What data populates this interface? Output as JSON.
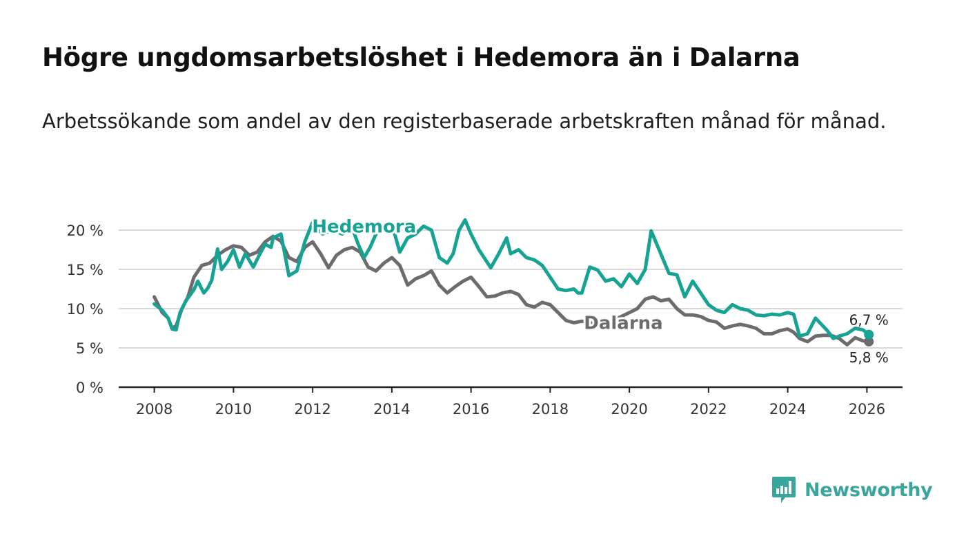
{
  "title": "Högre ungdomsarbetslöshet i Hedemora än i Dalarna",
  "subtitle": "Arbetssökande som andel av den registerbaserade arbetskraften månad för månad.",
  "brand": {
    "name": "Newsworthy",
    "color": "#3aa59b"
  },
  "chart_data": {
    "type": "line",
    "title": "Högre ungdomsarbetslöshet i Hedemora än i Dalarna",
    "xlabel": "",
    "ylabel": "",
    "xlim": [
      2007.1,
      2026.9
    ],
    "ylim": [
      0,
      20
    ],
    "x_ticks": [
      2008,
      2010,
      2012,
      2014,
      2016,
      2018,
      2020,
      2022,
      2024,
      2026
    ],
    "y_ticks": [
      0,
      5,
      10,
      15,
      20
    ],
    "y_tick_labels": [
      "0 %",
      "5 %",
      "10 %",
      "15 %",
      "20 %"
    ],
    "grid": true,
    "series": [
      {
        "name": "Hedemora",
        "label": "Hedemora",
        "color": "#16a394",
        "end_label": "6,7 %",
        "x": [
          2008.0,
          2008.2,
          2008.35,
          2008.45,
          2008.55,
          2008.65,
          2008.8,
          2009.0,
          2009.1,
          2009.25,
          2009.35,
          2009.45,
          2009.6,
          2009.7,
          2009.85,
          2010.0,
          2010.15,
          2010.3,
          2010.5,
          2010.65,
          2010.8,
          2010.95,
          2011.0,
          2011.2,
          2011.4,
          2011.6,
          2011.8,
          2012.0,
          2012.25,
          2012.5,
          2012.75,
          2013.0,
          2013.15,
          2013.3,
          2013.45,
          2013.6,
          2013.8,
          2014.0,
          2014.2,
          2014.4,
          2014.6,
          2014.8,
          2015.0,
          2015.2,
          2015.4,
          2015.55,
          2015.7,
          2015.85,
          2016.0,
          2016.2,
          2016.5,
          2016.7,
          2016.9,
          2017.0,
          2017.2,
          2017.4,
          2017.6,
          2017.8,
          2018.0,
          2018.2,
          2018.4,
          2018.6,
          2018.7,
          2018.8,
          2019.0,
          2019.2,
          2019.4,
          2019.6,
          2019.8,
          2020.0,
          2020.2,
          2020.4,
          2020.55,
          2020.75,
          2021.0,
          2021.2,
          2021.4,
          2021.6,
          2021.8,
          2022.0,
          2022.2,
          2022.4,
          2022.6,
          2022.8,
          2023.0,
          2023.2,
          2023.4,
          2023.6,
          2023.8,
          2024.0,
          2024.15,
          2024.3,
          2024.5,
          2024.7,
          2024.85,
          2025.0,
          2025.15,
          2025.3,
          2025.5,
          2025.7,
          2025.9,
          2026.05
        ],
        "values": [
          10.6,
          9.8,
          8.8,
          7.4,
          7.3,
          9.5,
          11.0,
          12.4,
          13.5,
          12.0,
          12.6,
          13.6,
          17.6,
          15.0,
          16.0,
          17.5,
          15.3,
          17.0,
          15.3,
          16.8,
          18.2,
          17.8,
          19.0,
          19.5,
          14.2,
          14.8,
          18.5,
          21.0,
          19.5,
          20.0,
          19.5,
          20.3,
          18.2,
          16.5,
          17.8,
          19.5,
          20.5,
          20.8,
          17.2,
          19.0,
          19.5,
          20.5,
          20.0,
          16.5,
          15.8,
          17.0,
          20.0,
          21.3,
          19.5,
          17.5,
          15.2,
          17.0,
          19.0,
          17.0,
          17.5,
          16.5,
          16.2,
          15.5,
          14.0,
          12.5,
          12.3,
          12.5,
          12.0,
          12.0,
          15.3,
          14.9,
          13.5,
          13.8,
          12.8,
          14.4,
          13.2,
          15.0,
          19.9,
          17.5,
          14.5,
          14.3,
          11.5,
          13.5,
          12.0,
          10.5,
          9.8,
          9.5,
          10.5,
          10.0,
          9.8,
          9.2,
          9.1,
          9.3,
          9.2,
          9.5,
          9.3,
          6.5,
          6.8,
          8.8,
          8.0,
          7.2,
          6.2,
          6.5,
          6.8,
          7.5,
          7.3,
          6.7
        ]
      },
      {
        "name": "Dalarna",
        "label": "Dalarna",
        "color": "#6e6b6e",
        "end_label": "5,8 %",
        "x": [
          2008.0,
          2008.2,
          2008.35,
          2008.45,
          2008.55,
          2008.7,
          2008.85,
          2009.0,
          2009.2,
          2009.4,
          2009.6,
          2009.8,
          2010.0,
          2010.2,
          2010.4,
          2010.6,
          2010.8,
          2011.0,
          2011.2,
          2011.4,
          2011.6,
          2011.8,
          2012.0,
          2012.2,
          2012.4,
          2012.6,
          2012.8,
          2013.0,
          2013.2,
          2013.4,
          2013.6,
          2013.8,
          2014.0,
          2014.2,
          2014.4,
          2014.6,
          2014.8,
          2015.0,
          2015.2,
          2015.4,
          2015.6,
          2015.8,
          2016.0,
          2016.2,
          2016.4,
          2016.6,
          2016.8,
          2017.0,
          2017.2,
          2017.4,
          2017.6,
          2017.8,
          2018.0,
          2018.2,
          2018.4,
          2018.6,
          2018.8,
          2019.0,
          2019.2,
          2019.4,
          2019.6,
          2019.8,
          2020.0,
          2020.2,
          2020.4,
          2020.6,
          2020.8,
          2021.0,
          2021.2,
          2021.4,
          2021.6,
          2021.8,
          2022.0,
          2022.2,
          2022.4,
          2022.6,
          2022.8,
          2023.0,
          2023.2,
          2023.4,
          2023.6,
          2023.8,
          2024.0,
          2024.15,
          2024.3,
          2024.5,
          2024.7,
          2024.9,
          2025.1,
          2025.3,
          2025.5,
          2025.7,
          2025.9,
          2026.05
        ],
        "values": [
          11.5,
          9.5,
          8.8,
          7.5,
          7.8,
          10.0,
          11.5,
          14.0,
          15.5,
          15.8,
          16.8,
          17.5,
          18.0,
          17.8,
          16.8,
          17.2,
          18.5,
          19.2,
          18.6,
          16.5,
          16.0,
          17.8,
          18.5,
          17.0,
          15.2,
          16.8,
          17.5,
          17.8,
          17.2,
          15.3,
          14.8,
          15.8,
          16.5,
          15.5,
          13.0,
          13.8,
          14.2,
          14.8,
          13.0,
          12.0,
          12.8,
          13.5,
          14.0,
          12.8,
          11.5,
          11.6,
          12.0,
          12.2,
          11.8,
          10.5,
          10.2,
          10.8,
          10.5,
          9.5,
          8.5,
          8.2,
          8.4,
          8.2,
          8.0,
          7.5,
          8.5,
          9.0,
          9.5,
          10.0,
          11.2,
          11.5,
          11.0,
          11.2,
          10.0,
          9.2,
          9.2,
          9.0,
          8.5,
          8.3,
          7.5,
          7.8,
          8.0,
          7.8,
          7.5,
          6.8,
          6.8,
          7.2,
          7.4,
          7.0,
          6.2,
          5.8,
          6.5,
          6.6,
          6.6,
          6.2,
          5.4,
          6.3,
          5.9,
          5.8
        ]
      }
    ]
  }
}
